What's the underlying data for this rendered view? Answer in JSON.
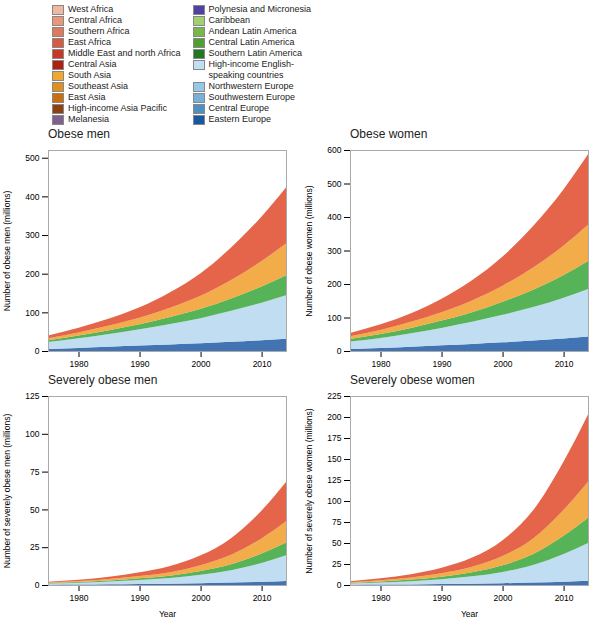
{
  "chart_data": [
    {
      "type": "area",
      "stacked": true,
      "grid": false,
      "title": "Obese men",
      "ylabel": "Number of obese men (millions)",
      "x": [
        1975,
        1980,
        1985,
        1990,
        1995,
        2000,
        2005,
        2010,
        2014
      ],
      "xlim": [
        1975,
        2014
      ],
      "xticks": [
        1980,
        1990,
        2000,
        2010
      ],
      "ylim": [
        0,
        520
      ],
      "yticks": [
        0,
        100,
        200,
        300,
        400,
        500
      ],
      "series": [
        {
          "color": "#2860a8",
          "values": [
            5,
            8,
            11,
            14,
            17,
            20,
            24,
            28,
            32
          ]
        },
        {
          "color": "#b8d8f0",
          "values": [
            18,
            25,
            33,
            42,
            53,
            65,
            80,
            97,
            112
          ]
        },
        {
          "color": "#40a840",
          "values": [
            5,
            7,
            10,
            13,
            18,
            24,
            32,
            42,
            52
          ]
        },
        {
          "color": "#f0a030",
          "values": [
            5,
            8,
            12,
            17,
            24,
            34,
            48,
            66,
            82
          ]
        },
        {
          "color": "#e05030",
          "values": [
            7,
            12,
            18,
            27,
            40,
            58,
            84,
            115,
            145
          ]
        }
      ],
      "legend_columns": [
        [
          {
            "name": "West Africa",
            "color": "#f0b8a0"
          },
          {
            "name": "Central Africa",
            "color": "#e89878"
          },
          {
            "name": "Southern Africa",
            "color": "#e07860"
          },
          {
            "name": "East Africa",
            "color": "#d85840"
          },
          {
            "name": "Middle East and north Africa",
            "color": "#c83828"
          },
          {
            "name": "Central Asia",
            "color": "#b02010"
          },
          {
            "name": "South Asia",
            "color": "#f0a830"
          },
          {
            "name": "Southeast Asia",
            "color": "#e09020"
          },
          {
            "name": "East Asia",
            "color": "#c87010"
          },
          {
            "name": "High-income Asia Pacific",
            "color": "#904010"
          },
          {
            "name": "Melanesia",
            "color": "#806090"
          }
        ],
        [
          {
            "name": "Polynesia and Micronesia",
            "color": "#5040a0"
          },
          {
            "name": "Caribbean",
            "color": "#a0d070"
          },
          {
            "name": "Andean Latin America",
            "color": "#78b848"
          },
          {
            "name": "Central Latin America",
            "color": "#50a030"
          },
          {
            "name": "Southern Latin America",
            "color": "#207820"
          },
          {
            "name": "High-income English-\nspeaking countries",
            "color": "#c0dff0"
          },
          {
            "name": "Northwestern Europe",
            "color": "#98c8e8"
          },
          {
            "name": "Southwestern Europe",
            "color": "#78b0d8"
          },
          {
            "name": "Central Europe",
            "color": "#5090c0"
          },
          {
            "name": "Eastern Europe",
            "color": "#1858a0"
          }
        ]
      ]
    },
    {
      "type": "area",
      "stacked": true,
      "grid": false,
      "title": "Obese women",
      "ylabel": "Number of obese women (millions)",
      "x": [
        1975,
        1980,
        1985,
        1990,
        1995,
        2000,
        2005,
        2010,
        2014
      ],
      "xlim": [
        1975,
        2014
      ],
      "xticks": [
        1980,
        1990,
        2000,
        2010
      ],
      "ylim": [
        0,
        600
      ],
      "yticks": [
        0,
        100,
        200,
        300,
        400,
        500,
        600
      ],
      "series": [
        {
          "color": "#2860a8",
          "values": [
            6,
            9,
            13,
            17,
            21,
            26,
            31,
            37,
            43
          ]
        },
        {
          "color": "#b8d8f0",
          "values": [
            22,
            30,
            40,
            52,
            66,
            82,
            100,
            122,
            142
          ]
        },
        {
          "color": "#40a840",
          "values": [
            8,
            12,
            16,
            22,
            29,
            39,
            52,
            68,
            84
          ]
        },
        {
          "color": "#f0a030",
          "values": [
            8,
            12,
            18,
            25,
            35,
            48,
            66,
            88,
            108
          ]
        },
        {
          "color": "#e05030",
          "values": [
            10,
            17,
            26,
            40,
            60,
            87,
            124,
            168,
            210
          ]
        }
      ]
    },
    {
      "type": "area",
      "stacked": true,
      "grid": false,
      "title": "Severely obese men",
      "ylabel": "Number of severely obese men (millions)",
      "xlabel": "Year",
      "x": [
        1975,
        1980,
        1985,
        1990,
        1995,
        2000,
        2005,
        2010,
        2014
      ],
      "xlim": [
        1975,
        2014
      ],
      "xticks": [
        1980,
        1990,
        2000,
        2010
      ],
      "ylim": [
        0,
        125
      ],
      "yticks": [
        0,
        25,
        50,
        75,
        100,
        125
      ],
      "series": [
        {
          "color": "#2860a8",
          "values": [
            0.2,
            0.3,
            0.5,
            0.7,
            0.9,
            1.2,
            1.6,
            2.1,
            2.6
          ]
        },
        {
          "color": "#b8d8f0",
          "values": [
            0.8,
            1.2,
            1.8,
            2.6,
            3.7,
            5.5,
            8.2,
            12.5,
            17.0
          ]
        },
        {
          "color": "#40a840",
          "values": [
            0.3,
            0.5,
            0.7,
            1.1,
            1.6,
            2.6,
            4.0,
            6.2,
            8.5
          ]
        },
        {
          "color": "#f0a030",
          "values": [
            0.4,
            0.6,
            1.0,
            1.5,
            2.3,
            3.8,
            6.2,
            10.0,
            14.0
          ]
        },
        {
          "color": "#e05030",
          "values": [
            0.5,
            0.9,
            1.5,
            2.5,
            4.0,
            6.5,
            11.0,
            18.5,
            26.0
          ]
        }
      ]
    },
    {
      "type": "area",
      "stacked": true,
      "grid": false,
      "title": "Severely obese women",
      "ylabel": "Number of severely obese women (millions)",
      "xlabel": "Year",
      "x": [
        1975,
        1980,
        1985,
        1990,
        1995,
        2000,
        2005,
        2010,
        2014
      ],
      "xlim": [
        1975,
        2014
      ],
      "xticks": [
        1980,
        1990,
        2000,
        2010
      ],
      "ylim": [
        0,
        225
      ],
      "yticks": [
        0,
        25,
        50,
        75,
        100,
        125,
        150,
        175,
        200,
        225
      ],
      "series": [
        {
          "color": "#2860a8",
          "values": [
            0.3,
            0.5,
            0.7,
            1.1,
            1.5,
            2.1,
            2.9,
            4.0,
            5.0
          ]
        },
        {
          "color": "#b8d8f0",
          "values": [
            1.5,
            2.5,
            3.8,
            5.8,
            8.8,
            13.5,
            21.0,
            33.0,
            45.0
          ]
        },
        {
          "color": "#40a840",
          "values": [
            0.7,
            1.2,
            1.9,
            3.0,
            4.8,
            7.8,
            13.0,
            21.5,
            30.0
          ]
        },
        {
          "color": "#f0a030",
          "values": [
            0.9,
            1.5,
            2.5,
            4.0,
            6.5,
            11.0,
            18.5,
            31.0,
            43.0
          ]
        },
        {
          "color": "#e05030",
          "values": [
            1.2,
            2.2,
            3.8,
            6.5,
            11.0,
            19.0,
            33.5,
            57.5,
            80.0
          ]
        }
      ]
    }
  ]
}
